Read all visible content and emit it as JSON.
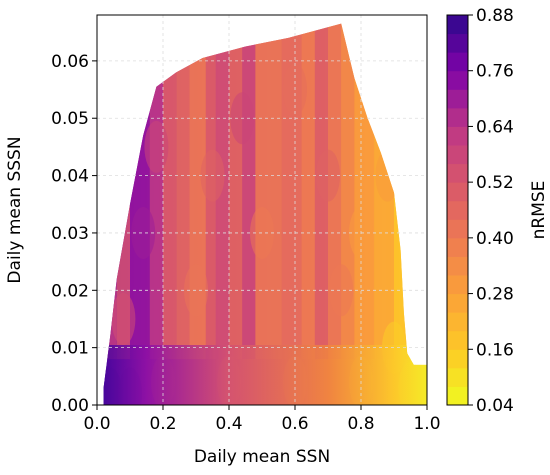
{
  "chart_data": {
    "type": "heatmap",
    "subtype": "filled-contour",
    "title": "",
    "xlabel": "Daily mean SSN",
    "ylabel": "Daily mean SSSN",
    "xlim": [
      0.0,
      1.0
    ],
    "ylim": [
      0.0,
      0.068
    ],
    "x_ticks": [
      0.0,
      0.2,
      0.4,
      0.6,
      0.8,
      1.0
    ],
    "x_tick_labels": [
      "0.0",
      "0.2",
      "0.4",
      "0.6",
      "0.8",
      "1.0"
    ],
    "y_ticks": [
      0.0,
      0.01,
      0.02,
      0.03,
      0.04,
      0.05,
      0.06
    ],
    "y_tick_labels": [
      "0.00",
      "0.01",
      "0.02",
      "0.03",
      "0.04",
      "0.05",
      "0.06"
    ],
    "grid": true,
    "colorbar": {
      "label": "nRMSE",
      "colormap": "plasma (reversed)",
      "range": [
        0.04,
        0.88
      ],
      "ticks": [
        0.04,
        0.16,
        0.28,
        0.4,
        0.52,
        0.64,
        0.76,
        0.88
      ],
      "tick_labels": [
        "0.04",
        "0.16",
        "0.28",
        "0.40",
        "0.52",
        "0.64",
        "0.76",
        "0.88"
      ],
      "n_levels": 21
    },
    "data_region_boundary": [
      [
        0.02,
        0.0
      ],
      [
        0.02,
        0.003
      ],
      [
        0.04,
        0.012
      ],
      [
        0.06,
        0.022
      ],
      [
        0.1,
        0.035
      ],
      [
        0.14,
        0.047
      ],
      [
        0.18,
        0.0555
      ],
      [
        0.24,
        0.058
      ],
      [
        0.32,
        0.0605
      ],
      [
        0.45,
        0.0625
      ],
      [
        0.58,
        0.064
      ],
      [
        0.74,
        0.0665
      ],
      [
        0.78,
        0.057
      ],
      [
        0.82,
        0.05
      ],
      [
        0.86,
        0.044
      ],
      [
        0.9,
        0.037
      ],
      [
        0.92,
        0.027
      ],
      [
        0.93,
        0.016
      ],
      [
        0.94,
        0.009
      ],
      [
        0.96,
        0.007
      ],
      [
        1.0,
        0.007
      ],
      [
        1.0,
        0.0
      ]
    ],
    "nrmse_field_samples": [
      {
        "x": 0.04,
        "y": 0.002,
        "nrmse": 0.85
      },
      {
        "x": 0.1,
        "y": 0.002,
        "nrmse": 0.8
      },
      {
        "x": 0.2,
        "y": 0.004,
        "nrmse": 0.58
      },
      {
        "x": 0.4,
        "y": 0.004,
        "nrmse": 0.45
      },
      {
        "x": 0.6,
        "y": 0.004,
        "nrmse": 0.36
      },
      {
        "x": 0.8,
        "y": 0.004,
        "nrmse": 0.2
      },
      {
        "x": 0.95,
        "y": 0.003,
        "nrmse": 0.1
      },
      {
        "x": 0.08,
        "y": 0.015,
        "nrmse": 0.55
      },
      {
        "x": 0.14,
        "y": 0.03,
        "nrmse": 0.7
      },
      {
        "x": 0.18,
        "y": 0.045,
        "nrmse": 0.58
      },
      {
        "x": 0.3,
        "y": 0.02,
        "nrmse": 0.42
      },
      {
        "x": 0.35,
        "y": 0.04,
        "nrmse": 0.48
      },
      {
        "x": 0.44,
        "y": 0.05,
        "nrmse": 0.58
      },
      {
        "x": 0.5,
        "y": 0.03,
        "nrmse": 0.4
      },
      {
        "x": 0.6,
        "y": 0.055,
        "nrmse": 0.44
      },
      {
        "x": 0.7,
        "y": 0.04,
        "nrmse": 0.48
      },
      {
        "x": 0.74,
        "y": 0.02,
        "nrmse": 0.4
      },
      {
        "x": 0.8,
        "y": 0.03,
        "nrmse": 0.3
      },
      {
        "x": 0.88,
        "y": 0.04,
        "nrmse": 0.3
      },
      {
        "x": 0.9,
        "y": 0.01,
        "nrmse": 0.15
      }
    ]
  }
}
